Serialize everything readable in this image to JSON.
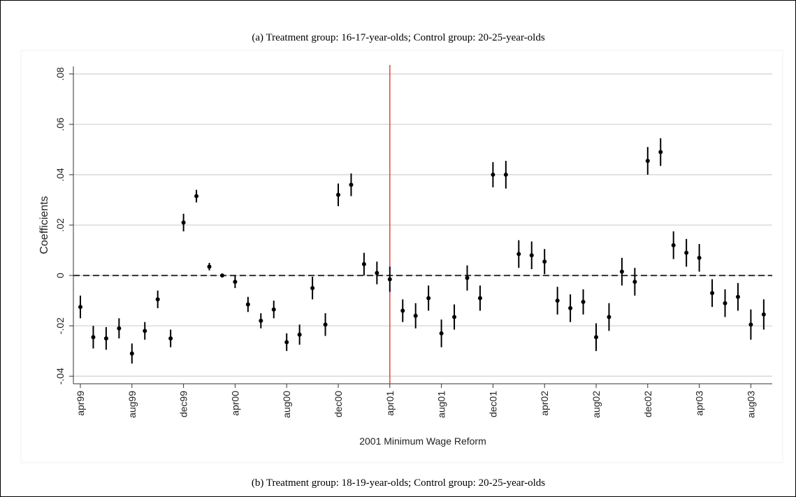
{
  "captions": [
    "(a) Treatment group: 16-17-year-olds; Control group: 20-25-year-olds",
    "(b) Treatment group: 18-19-year-olds; Control group: 20-25-year-olds"
  ],
  "chart_data": {
    "type": "errorbar",
    "x_label": "2001 Minimum Wage Reform",
    "y_label": "Coefficients",
    "categories": [
      "apr99",
      null,
      null,
      null,
      "aug99",
      null,
      null,
      null,
      "dec99",
      null,
      null,
      null,
      "apr00",
      null,
      null,
      null,
      "aug00",
      null,
      null,
      null,
      "dec00",
      null,
      null,
      null,
      "apr01",
      null,
      null,
      null,
      "aug01",
      null,
      null,
      null,
      "dec01",
      null,
      null,
      null,
      "apr02",
      null,
      null,
      null,
      "aug02",
      null,
      null,
      null,
      "dec02",
      null,
      null,
      null,
      "apr03",
      null,
      null,
      null,
      "aug03",
      null
    ],
    "values": [
      -0.0125,
      -0.0245,
      -0.025,
      -0.021,
      -0.031,
      -0.022,
      -0.0095,
      -0.025,
      0.021,
      0.0315,
      0.0035,
      0.0,
      -0.0025,
      -0.0115,
      -0.018,
      -0.0135,
      -0.0265,
      -0.0235,
      -0.005,
      -0.0195,
      0.032,
      0.036,
      0.0045,
      0.001,
      -0.0015,
      -0.014,
      -0.016,
      -0.009,
      -0.023,
      -0.0165,
      -0.001,
      -0.009,
      0.04,
      0.04,
      0.0085,
      0.008,
      0.0055,
      -0.01,
      -0.013,
      -0.0105,
      -0.0245,
      -0.0165,
      0.0015,
      -0.0025,
      0.0455,
      0.049,
      0.012,
      0.009,
      0.007,
      -0.007,
      -0.011,
      -0.0085,
      -0.0195,
      -0.0155
    ],
    "errors": [
      0.0045,
      0.0045,
      0.0045,
      0.004,
      0.004,
      0.0035,
      0.0035,
      0.0035,
      0.0035,
      0.0025,
      0.0015,
      0.0007,
      0.0025,
      0.003,
      0.003,
      0.0035,
      0.0035,
      0.004,
      0.0045,
      0.0045,
      0.0045,
      0.0045,
      0.0045,
      0.0045,
      0.005,
      0.0045,
      0.005,
      0.005,
      0.0055,
      0.005,
      0.005,
      0.005,
      0.005,
      0.0055,
      0.0055,
      0.0055,
      0.005,
      0.0055,
      0.0055,
      0.005,
      0.0055,
      0.0055,
      0.0055,
      0.0055,
      0.0055,
      0.0055,
      0.0055,
      0.0055,
      0.0055,
      0.0055,
      0.0055,
      0.0055,
      0.006,
      0.006
    ],
    "color": "#000000",
    "ylim": [
      -0.043,
      0.083
    ],
    "yticks": [
      {
        "value": -0.04,
        "label": "-.04"
      },
      {
        "value": -0.02,
        "label": "-.02"
      },
      0,
      {
        "value": 0.02,
        "label": ".02"
      },
      {
        "value": 0.04,
        "label": ".04"
      },
      {
        "value": 0.06,
        "label": ".06"
      },
      {
        "value": 0.08,
        "label": ".08"
      }
    ],
    "grid": true,
    "hline": 0,
    "vline": {
      "category": 24,
      "color": "#e8413a"
    }
  }
}
